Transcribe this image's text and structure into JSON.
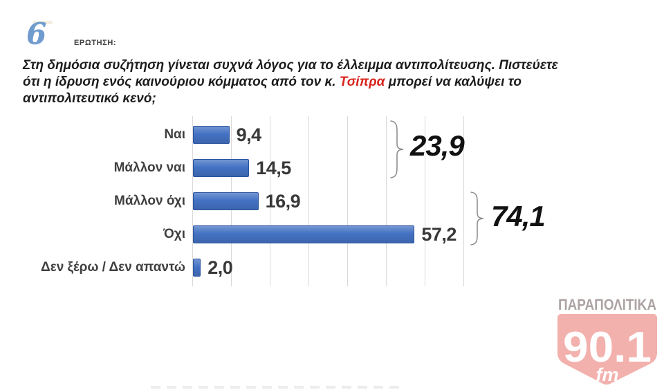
{
  "header": {
    "number": "6",
    "label": "ΕΡΩΤΗΣΗ:"
  },
  "question": {
    "line1": "Στη δημόσια συζήτηση γίνεται συχνά λόγος για το έλλειμμα αντιπολίτευσης. Πιστεύετε",
    "line2_before": "ότι η ίδρυση ενός καινούριου κόμματος από τον κ. ",
    "line2_highlight": "Τσίπρα",
    "line2_after": " μπορεί να καλύψει το",
    "line3": "αντιπολιτευτικό κενό;",
    "highlight_color": "#d8241d"
  },
  "chart_data": {
    "type": "bar",
    "orientation": "horizontal",
    "title": "",
    "categories": [
      "Ναι",
      "Μάλλον ναι",
      "Μάλλον όχι",
      "Όχι",
      "Δεν ξέρω / Δεν απαντώ"
    ],
    "values": [
      9.4,
      14.5,
      16.9,
      57.2,
      2.0
    ],
    "value_labels": [
      "9,4",
      "14,5",
      "16,9",
      "57,2",
      "2,0"
    ],
    "xlim": [
      0,
      70
    ],
    "gridline_interval": 10,
    "grid": true,
    "legend": false,
    "bar_color": "#4472c4",
    "bar_border_color": "#2b539e",
    "groups": [
      {
        "label": "23,9",
        "covers": [
          "Ναι",
          "Μάλλον ναι"
        ]
      },
      {
        "label": "74,1",
        "covers": [
          "Μάλλον όχι",
          "Όχι"
        ]
      }
    ]
  },
  "logo": {
    "top_text": "ΠΑΡΑΠΟΛΙΤΙΚΑ",
    "main_text": "90.1",
    "sub_text": "fm",
    "color": "#e2453c"
  }
}
